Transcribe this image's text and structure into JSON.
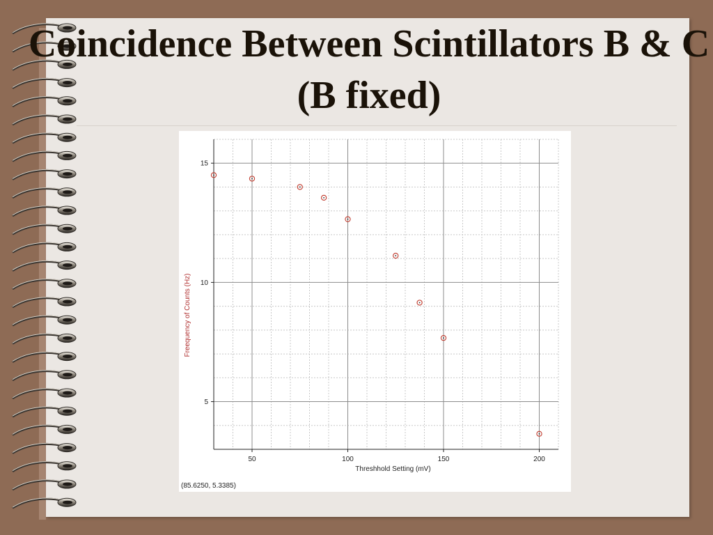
{
  "slide": {
    "title": "Coincidence Between Scintillators B & C (B fixed)"
  },
  "colors": {
    "background": "#8e6b55",
    "page": "#ebe7e3",
    "point": "#c0392b",
    "ylabel": "#b03030"
  },
  "icons": [
    "spiral-binding-icon"
  ],
  "cursor_readout": "(85.6250, 5.3385)",
  "chart_data": {
    "type": "scatter",
    "title": "",
    "xlabel": "Threshhold Setting (mV)",
    "ylabel": "Freequency of Counts (Hz)",
    "xlim": [
      30,
      210
    ],
    "ylim": [
      3,
      16
    ],
    "xticks": [
      50,
      100,
      150,
      200
    ],
    "yticks": [
      5,
      10,
      15
    ],
    "grid": true,
    "series": [
      {
        "x": [
          30,
          50,
          75,
          87.5,
          100,
          125,
          137.5,
          150,
          200
        ],
        "y": [
          14.5,
          14.35,
          14.0,
          13.55,
          12.65,
          11.12,
          9.15,
          7.67,
          3.65
        ]
      }
    ]
  }
}
